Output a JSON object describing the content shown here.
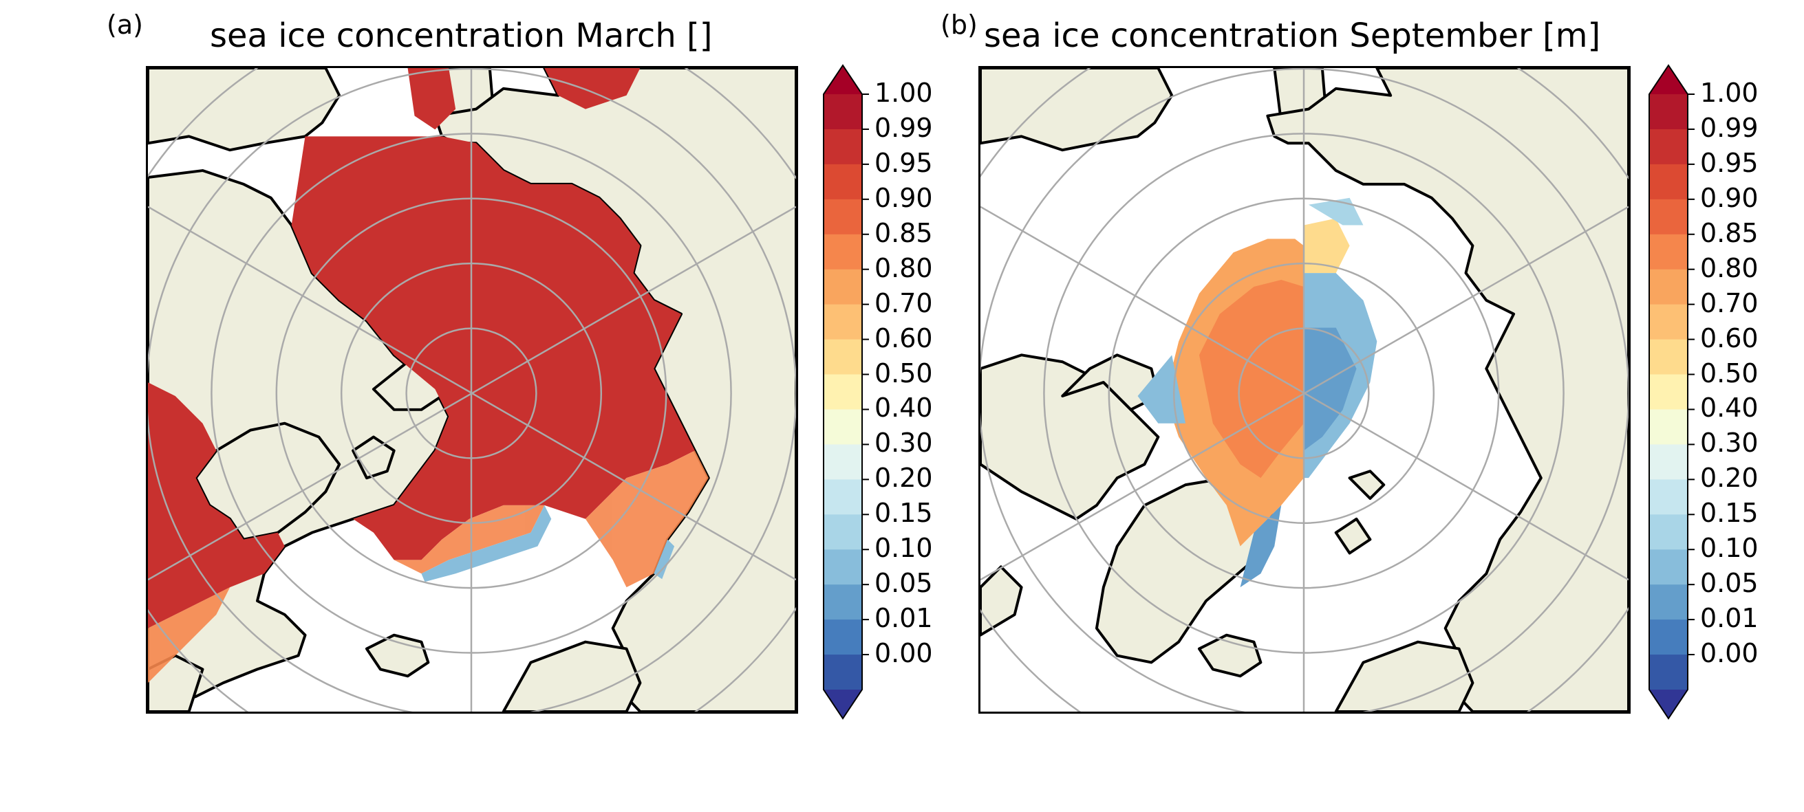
{
  "panels": [
    {
      "label": "(a)",
      "title": "sea ice concentration March []"
    },
    {
      "label": "(b)",
      "title": "sea ice concentration September [m]"
    }
  ],
  "colorbar": {
    "ticks": [
      "1.00",
      "0.99",
      "0.95",
      "0.90",
      "0.85",
      "0.80",
      "0.70",
      "0.60",
      "0.50",
      "0.40",
      "0.30",
      "0.20",
      "0.15",
      "0.10",
      "0.05",
      "0.01",
      "0.00"
    ],
    "colors_top_to_bottom": [
      "#b2182b",
      "#c8312f",
      "#dc4a32",
      "#ea653d",
      "#f5864c",
      "#f9a55e",
      "#fdc074",
      "#fedb8d",
      "#fff2b0",
      "#f5fbd8",
      "#e2f3f0",
      "#c6e6ef",
      "#a9d5e7",
      "#88bddb",
      "#649ecb",
      "#467dbd",
      "#3458a6"
    ],
    "extend_max_color": "#a50026",
    "extend_min_color": "#313695"
  },
  "map_colors": {
    "land": "#eeeedd",
    "ocean": "#ffffff",
    "coast": "#000000",
    "graticule": "#aaaaaa"
  }
}
